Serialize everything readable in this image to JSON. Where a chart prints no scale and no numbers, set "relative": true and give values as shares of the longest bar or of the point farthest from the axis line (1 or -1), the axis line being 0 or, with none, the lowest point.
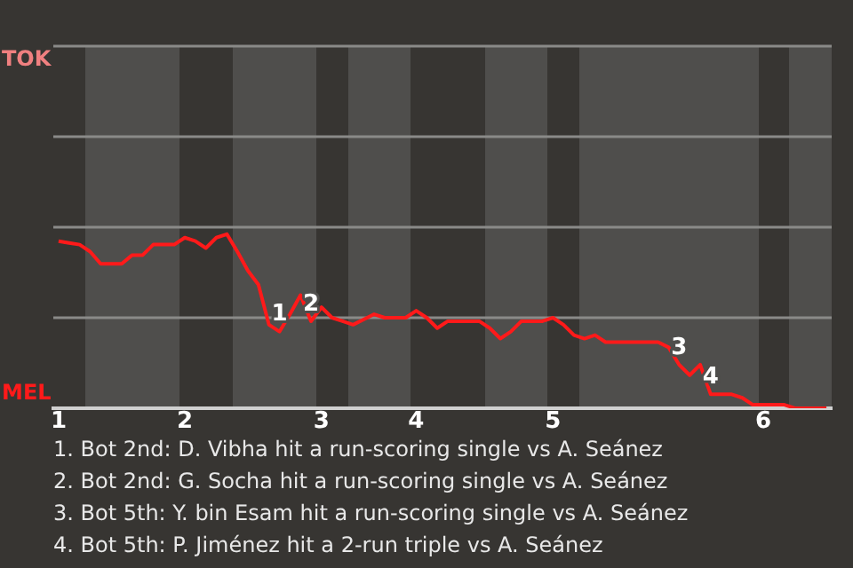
{
  "chart_data": {
    "type": "line",
    "relative": true,
    "categories": [
      "1",
      null,
      null,
      null,
      null,
      null,
      null,
      null,
      null,
      null,
      null,
      null,
      "2",
      null,
      null,
      null,
      null,
      null,
      null,
      null,
      null,
      null,
      null,
      null,
      null,
      "3",
      null,
      null,
      null,
      null,
      null,
      null,
      null,
      null,
      "4",
      null,
      null,
      null,
      null,
      null,
      null,
      null,
      null,
      null,
      null,
      null,
      null,
      "5",
      null,
      null,
      null,
      null,
      null,
      null,
      null,
      null,
      null,
      null,
      null,
      null,
      null,
      null,
      null,
      null,
      null,
      null,
      null,
      "6",
      null,
      null,
      null,
      null,
      null,
      null
    ],
    "series": [
      {
        "color": "#ff1a1a",
        "values": [
          0.96,
          0.95,
          0.94,
          0.9,
          0.83,
          0.83,
          0.83,
          0.88,
          0.88,
          0.94,
          0.94,
          0.94,
          0.98,
          0.96,
          0.92,
          0.98,
          1,
          0.9,
          0.79,
          0.71,
          0.48,
          0.44,
          0.54,
          0.65,
          0.5,
          0.58,
          0.52,
          0.5,
          0.48,
          0.51,
          0.54,
          0.52,
          0.52,
          0.52,
          0.56,
          0.52,
          0.46,
          0.5,
          0.5,
          0.5,
          0.5,
          0.46,
          0.4,
          0.44,
          0.5,
          0.5,
          0.5,
          0.52,
          0.48,
          0.42,
          0.4,
          0.42,
          0.38,
          0.38,
          0.38,
          0.38,
          0.38,
          0.38,
          0.35,
          0.25,
          0.19,
          0.25,
          0.08,
          0.08,
          0.08,
          0.06,
          0.02,
          0.02,
          0.02,
          0.02,
          0,
          0,
          0,
          0
        ]
      }
    ],
    "marker": "none",
    "ref_lines": [
      {
        "axis": "y",
        "value": 0.52,
        "color": "#8a8a88"
      },
      {
        "axis": "y",
        "value": 1.04,
        "color": "#8a8a88"
      },
      {
        "axis": "y",
        "value": 1.56,
        "color": "#8a8a88"
      },
      {
        "axis": "y",
        "value": 2.08,
        "color": "#8a8a88"
      }
    ],
    "annotations": [
      "TOK",
      "MEL",
      {
        "text": "1",
        "y": 0.44
      },
      {
        "text": "2",
        "y": 0.5
      },
      {
        "text": "3",
        "y": 0.25
      },
      {
        "text": "4",
        "y": 0.08
      },
      "1. Bot 2nd: D. Vibha hit a run-scoring single vs A. Seánez",
      "2. Bot 2nd: G. Socha hit a run-scoring single vs A. Seánez",
      "3. Bot 5th: Y. bin Esam hit a run-scoring single vs A. Seánez",
      "4. Bot 5th: P. Jiménez hit a 2-run triple vs A. Seánez"
    ]
  }
}
